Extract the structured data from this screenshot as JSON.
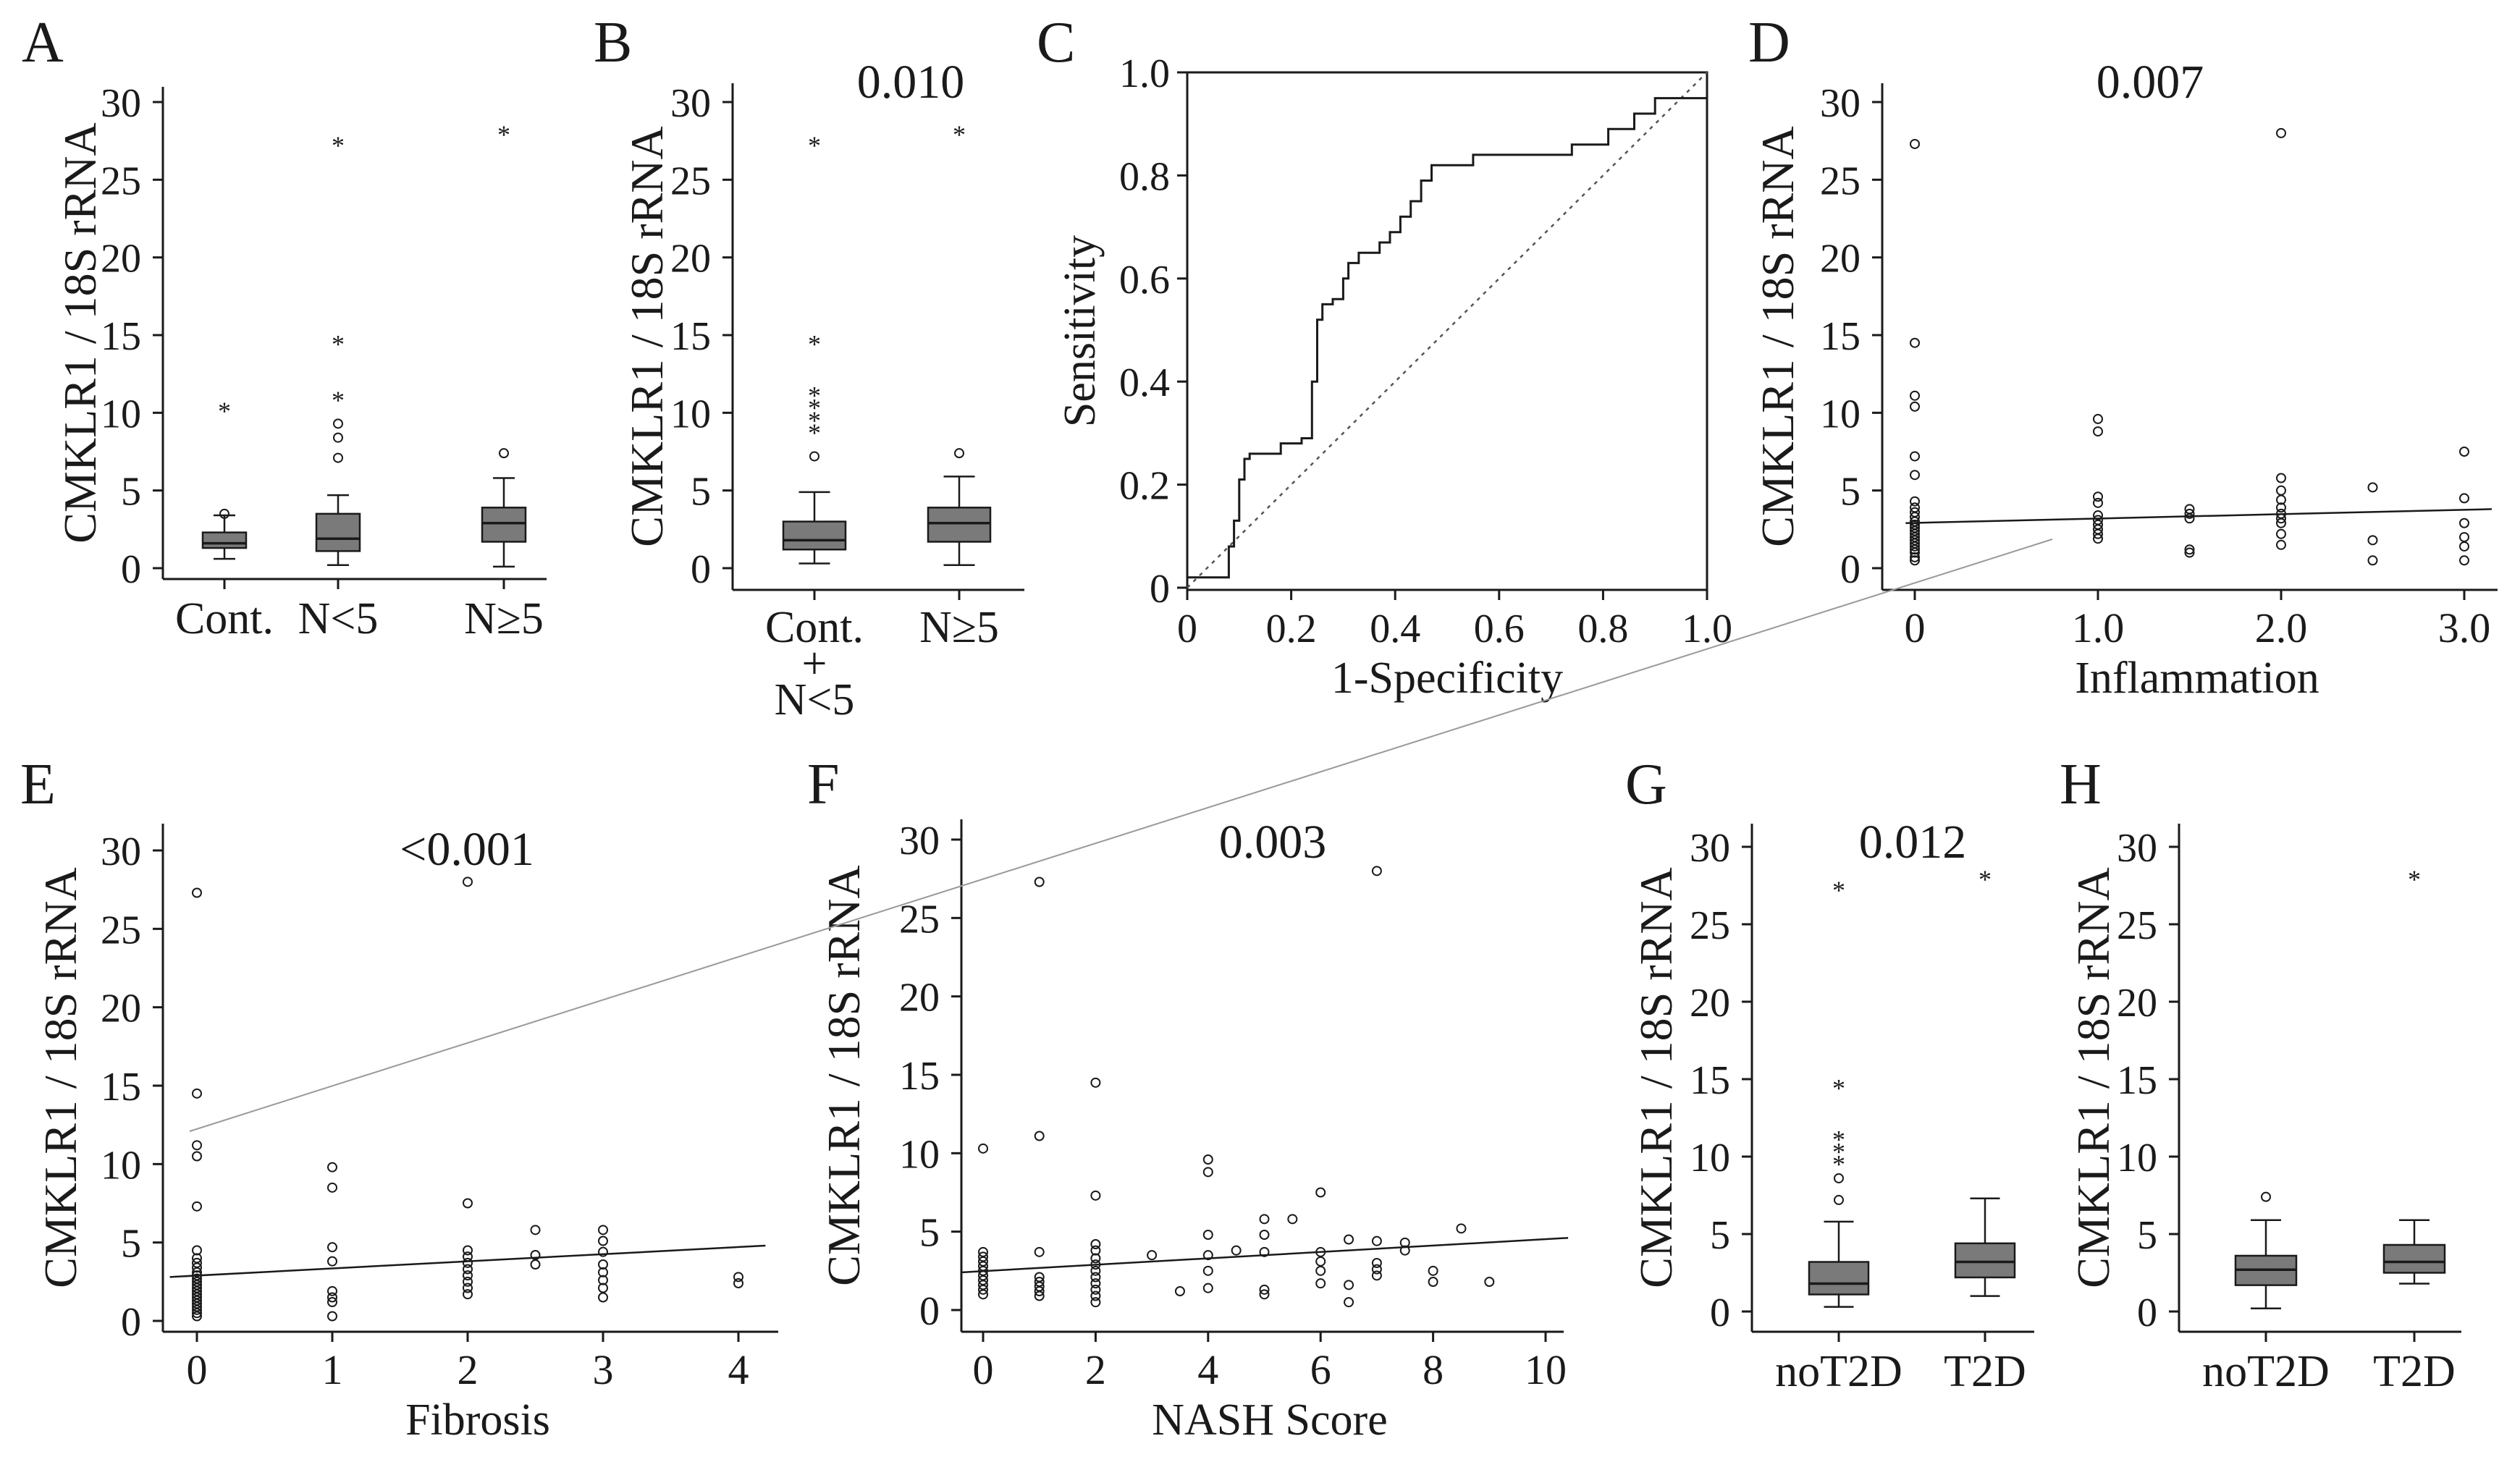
{
  "figure": {
    "ylabel": "CMKLR1 / 18S rRNA",
    "colors": {
      "ink": "#1a1a1a",
      "box_fill": "#7a7a7a",
      "diag": "#555555",
      "cross_line": "#9a9a9a"
    }
  },
  "chart_data": [
    {
      "id": "A",
      "letter": "A",
      "type": "box",
      "ylabel": "CMKLR1 / 18S rRNA",
      "xlabel": "",
      "pvalue": "",
      "ylim": [
        0,
        30
      ],
      "yticks": [
        "0",
        "5",
        "10",
        "15",
        "20",
        "25",
        "30"
      ],
      "categories": [
        "Cont.",
        "N<5",
        "N≥5"
      ],
      "boxes": [
        {
          "name": "Cont.",
          "whisker_low": 0.6,
          "q1": 1.3,
          "median": 1.6,
          "q3": 2.3,
          "whisker_high": 3.4,
          "outliers": [
            3.5
          ],
          "extremes": [
            10.2
          ]
        },
        {
          "name": "N<5",
          "whisker_low": 0.2,
          "q1": 1.1,
          "median": 1.9,
          "q3": 3.5,
          "whisker_high": 4.7,
          "outliers": [
            7.1,
            8.4,
            9.3
          ],
          "extremes": [
            10.9,
            14.5,
            27.3
          ]
        },
        {
          "name": "N≥5",
          "whisker_low": 0.1,
          "q1": 1.7,
          "median": 2.9,
          "q3": 3.9,
          "whisker_high": 5.8,
          "outliers": [
            7.4
          ],
          "extremes": [
            28.0
          ]
        }
      ]
    },
    {
      "id": "B",
      "letter": "B",
      "type": "box",
      "ylabel": "CMKLR1 / 18S rRNA",
      "xlabel": "",
      "pvalue": "0.010",
      "ylim": [
        0,
        30
      ],
      "yticks": [
        "0",
        "5",
        "10",
        "15",
        "20",
        "25",
        "30"
      ],
      "categories": [
        "Cont.\n+\nN<5",
        "N≥5"
      ],
      "category_lines": [
        [
          "Cont.",
          "+",
          "N<5"
        ],
        [
          "N≥5"
        ]
      ],
      "boxes": [
        {
          "name": "Cont. + N<5",
          "whisker_low": 0.3,
          "q1": 1.2,
          "median": 1.8,
          "q3": 3.0,
          "whisker_high": 4.9,
          "outliers": [
            7.2
          ],
          "extremes": [
            8.8,
            9.6,
            10.4,
            11.2,
            14.5,
            27.3
          ]
        },
        {
          "name": "N≥5",
          "whisker_low": 0.2,
          "q1": 1.7,
          "median": 2.9,
          "q3": 3.9,
          "whisker_high": 5.9,
          "outliers": [
            7.4
          ],
          "extremes": [
            28.0
          ]
        }
      ]
    },
    {
      "id": "C",
      "letter": "C",
      "type": "line",
      "xlabel": "1-Specificity",
      "ylabel": "Sensitivity",
      "xlim": [
        0,
        1
      ],
      "ylim": [
        0,
        1
      ],
      "xticks": [
        "0",
        "0.2",
        "0.4",
        "0.6",
        "0.8",
        "1.0"
      ],
      "yticks": [
        "0",
        "0.2",
        "0.4",
        "0.6",
        "0.8",
        "1.0"
      ],
      "series": [
        {
          "name": "ROC",
          "points": [
            [
              0,
              0.02
            ],
            [
              0.08,
              0.02
            ],
            [
              0.08,
              0.08
            ],
            [
              0.09,
              0.08
            ],
            [
              0.09,
              0.13
            ],
            [
              0.1,
              0.13
            ],
            [
              0.1,
              0.21
            ],
            [
              0.11,
              0.21
            ],
            [
              0.11,
              0.25
            ],
            [
              0.12,
              0.25
            ],
            [
              0.12,
              0.26
            ],
            [
              0.18,
              0.26
            ],
            [
              0.18,
              0.28
            ],
            [
              0.22,
              0.28
            ],
            [
              0.22,
              0.29
            ],
            [
              0.24,
              0.29
            ],
            [
              0.24,
              0.4
            ],
            [
              0.25,
              0.4
            ],
            [
              0.25,
              0.52
            ],
            [
              0.26,
              0.52
            ],
            [
              0.26,
              0.55
            ],
            [
              0.28,
              0.55
            ],
            [
              0.28,
              0.56
            ],
            [
              0.3,
              0.56
            ],
            [
              0.3,
              0.6
            ],
            [
              0.31,
              0.6
            ],
            [
              0.31,
              0.63
            ],
            [
              0.33,
              0.63
            ],
            [
              0.33,
              0.65
            ],
            [
              0.37,
              0.65
            ],
            [
              0.37,
              0.67
            ],
            [
              0.39,
              0.67
            ],
            [
              0.39,
              0.69
            ],
            [
              0.41,
              0.69
            ],
            [
              0.41,
              0.72
            ],
            [
              0.43,
              0.72
            ],
            [
              0.43,
              0.75
            ],
            [
              0.45,
              0.75
            ],
            [
              0.45,
              0.79
            ],
            [
              0.47,
              0.79
            ],
            [
              0.47,
              0.82
            ],
            [
              0.55,
              0.82
            ],
            [
              0.55,
              0.84
            ],
            [
              0.74,
              0.84
            ],
            [
              0.74,
              0.86
            ],
            [
              0.81,
              0.86
            ],
            [
              0.81,
              0.89
            ],
            [
              0.86,
              0.89
            ],
            [
              0.86,
              0.92
            ],
            [
              0.9,
              0.92
            ],
            [
              0.9,
              0.95
            ],
            [
              1.0,
              0.95
            ]
          ]
        },
        {
          "name": "Reference",
          "points": [
            [
              0,
              0
            ],
            [
              1,
              1
            ]
          ]
        }
      ]
    },
    {
      "id": "D",
      "letter": "D",
      "type": "scatter",
      "ylabel": "CMKLR1 / 18S rRNA",
      "xlabel": "Inflammation",
      "pvalue": "0.007",
      "xlim": [
        -0.2,
        3.2
      ],
      "ylim": [
        0,
        30
      ],
      "xtick_values": [
        0,
        1,
        2,
        3
      ],
      "xticks": [
        "0",
        "1.0",
        "2.0",
        "3.0"
      ],
      "yticks": [
        "0",
        "5",
        "10",
        "15",
        "20",
        "25",
        "30"
      ],
      "points": [
        [
          0,
          27.3
        ],
        [
          0,
          14.5
        ],
        [
          0,
          11.1
        ],
        [
          0,
          10.4
        ],
        [
          0,
          7.2
        ],
        [
          0,
          6
        ],
        [
          0,
          4.3
        ],
        [
          0,
          3.9
        ],
        [
          0,
          3.6
        ],
        [
          0,
          3.3
        ],
        [
          0,
          3
        ],
        [
          0,
          2.8
        ],
        [
          0,
          2.6
        ],
        [
          0,
          2.4
        ],
        [
          0,
          2.2
        ],
        [
          0,
          2
        ],
        [
          0,
          1.8
        ],
        [
          0,
          1.6
        ],
        [
          0,
          1.4
        ],
        [
          0,
          1.2
        ],
        [
          0,
          1
        ],
        [
          0,
          0.7
        ],
        [
          0,
          0.5
        ],
        [
          1,
          9.6
        ],
        [
          1,
          8.8
        ],
        [
          1,
          4.6
        ],
        [
          1,
          4.2
        ],
        [
          1,
          3.4
        ],
        [
          1,
          3.1
        ],
        [
          1,
          2.8
        ],
        [
          1,
          2.5
        ],
        [
          1,
          2.2
        ],
        [
          1,
          1.9
        ],
        [
          1.5,
          3.8
        ],
        [
          1.5,
          3.5
        ],
        [
          1.5,
          3.2
        ],
        [
          1.5,
          1.2
        ],
        [
          1.5,
          1.0
        ],
        [
          2,
          28.0
        ],
        [
          2,
          5.8
        ],
        [
          2,
          5.0
        ],
        [
          2,
          4.4
        ],
        [
          2,
          3.9
        ],
        [
          2,
          3.5
        ],
        [
          2,
          3.2
        ],
        [
          2,
          2.9
        ],
        [
          2,
          2.2
        ],
        [
          2,
          1.5
        ],
        [
          2.5,
          5.2
        ],
        [
          2.5,
          1.8
        ],
        [
          2.5,
          0.5
        ],
        [
          3,
          7.5
        ],
        [
          3,
          4.5
        ],
        [
          3,
          2.9
        ],
        [
          3,
          2.0
        ],
        [
          3,
          1.4
        ],
        [
          3,
          0.5
        ]
      ],
      "fit": [
        [
          -0.05,
          2.9
        ],
        [
          3.15,
          3.8
        ]
      ]
    },
    {
      "id": "E",
      "letter": "E",
      "type": "scatter",
      "ylabel": "CMKLR1 / 18S rRNA",
      "xlabel": "Fibrosis",
      "pvalue": "<0.001",
      "xlim": [
        -0.2,
        4.2
      ],
      "ylim": [
        0,
        30
      ],
      "xtick_values": [
        0,
        1,
        2,
        3,
        4
      ],
      "xticks": [
        "0",
        "1",
        "2",
        "3",
        "4"
      ],
      "yticks": [
        "0",
        "5",
        "10",
        "15",
        "20",
        "25",
        "30"
      ],
      "points": [
        [
          0,
          27.3
        ],
        [
          0,
          14.5
        ],
        [
          0,
          11.2
        ],
        [
          0,
          10.5
        ],
        [
          0,
          7.3
        ],
        [
          0,
          4.5
        ],
        [
          0,
          4.0
        ],
        [
          0,
          3.7
        ],
        [
          0,
          3.4
        ],
        [
          0,
          3.1
        ],
        [
          0,
          2.9
        ],
        [
          0,
          2.7
        ],
        [
          0,
          2.5
        ],
        [
          0,
          2.3
        ],
        [
          0,
          2.1
        ],
        [
          0,
          1.9
        ],
        [
          0,
          1.7
        ],
        [
          0,
          1.5
        ],
        [
          0,
          1.3
        ],
        [
          0,
          1.1
        ],
        [
          0,
          0.9
        ],
        [
          0,
          0.7
        ],
        [
          0,
          0.5
        ],
        [
          0,
          0.3
        ],
        [
          1,
          9.8
        ],
        [
          1,
          8.5
        ],
        [
          1,
          4.7
        ],
        [
          1,
          3.8
        ],
        [
          1,
          1.9
        ],
        [
          1,
          1.5
        ],
        [
          1,
          1.2
        ],
        [
          1,
          0.3
        ],
        [
          2,
          28.0
        ],
        [
          2,
          7.5
        ],
        [
          2,
          4.5
        ],
        [
          2,
          4.1
        ],
        [
          2,
          3.7
        ],
        [
          2,
          3.3
        ],
        [
          2,
          2.9
        ],
        [
          2,
          2.5
        ],
        [
          2,
          2.1
        ],
        [
          2,
          1.7
        ],
        [
          2.5,
          5.8
        ],
        [
          2.5,
          4.2
        ],
        [
          2.5,
          3.6
        ],
        [
          3,
          5.8
        ],
        [
          3,
          5.1
        ],
        [
          3,
          4.4
        ],
        [
          3,
          3.6
        ],
        [
          3,
          3.1
        ],
        [
          3,
          2.6
        ],
        [
          3,
          2.1
        ],
        [
          3,
          1.5
        ],
        [
          4,
          2.8
        ],
        [
          4,
          2.4
        ]
      ],
      "fit": [
        [
          -0.2,
          2.8
        ],
        [
          4.2,
          4.8
        ]
      ]
    },
    {
      "id": "F",
      "letter": "F",
      "type": "scatter",
      "ylabel": "CMKLR1 / 18S rRNA",
      "xlabel": "NASH Score",
      "pvalue": "0.003",
      "xlim": [
        -0.4,
        10.4
      ],
      "ylim": [
        0,
        30
      ],
      "xtick_values": [
        0,
        2,
        4,
        6,
        8,
        10
      ],
      "xticks": [
        "0",
        "2",
        "4",
        "6",
        "8",
        "10"
      ],
      "yticks": [
        "0",
        "5",
        "10",
        "15",
        "20",
        "25",
        "30"
      ],
      "points": [
        [
          0,
          10.3
        ],
        [
          0,
          3.7
        ],
        [
          0,
          3.4
        ],
        [
          0,
          3.1
        ],
        [
          0,
          2.8
        ],
        [
          0,
          2.5
        ],
        [
          0,
          2.2
        ],
        [
          0,
          1.9
        ],
        [
          0,
          1.6
        ],
        [
          0,
          1.3
        ],
        [
          0,
          1.0
        ],
        [
          1,
          27.3
        ],
        [
          1,
          11.1
        ],
        [
          1,
          3.7
        ],
        [
          1,
          2.1
        ],
        [
          1,
          1.8
        ],
        [
          1,
          1.5
        ],
        [
          1,
          1.2
        ],
        [
          1,
          0.9
        ],
        [
          2,
          14.5
        ],
        [
          2,
          7.3
        ],
        [
          2,
          4.2
        ],
        [
          2,
          3.8
        ],
        [
          2,
          3.3
        ],
        [
          2,
          2.9
        ],
        [
          2,
          2.5
        ],
        [
          2,
          2.1
        ],
        [
          2,
          1.7
        ],
        [
          2,
          1.3
        ],
        [
          2,
          0.9
        ],
        [
          2,
          0.5
        ],
        [
          3,
          3.5
        ],
        [
          3.5,
          1.2
        ],
        [
          4,
          9.6
        ],
        [
          4,
          8.8
        ],
        [
          4,
          4.8
        ],
        [
          4,
          3.5
        ],
        [
          4,
          2.5
        ],
        [
          4,
          1.4
        ],
        [
          4.5,
          3.8
        ],
        [
          5,
          5.8
        ],
        [
          5,
          4.8
        ],
        [
          5,
          3.7
        ],
        [
          5,
          1.3
        ],
        [
          5,
          1.0
        ],
        [
          5.5,
          5.8
        ],
        [
          6,
          7.5
        ],
        [
          6,
          3.7
        ],
        [
          6,
          3.1
        ],
        [
          6,
          2.5
        ],
        [
          6,
          1.7
        ],
        [
          6.5,
          4.5
        ],
        [
          6.5,
          1.6
        ],
        [
          6.5,
          0.5
        ],
        [
          7,
          28.0
        ],
        [
          7,
          4.4
        ],
        [
          7,
          3.0
        ],
        [
          7,
          2.6
        ],
        [
          7,
          2.2
        ],
        [
          7.5,
          4.3
        ],
        [
          7.5,
          3.8
        ],
        [
          8,
          2.5
        ],
        [
          8,
          1.8
        ],
        [
          8.5,
          5.2
        ],
        [
          9,
          1.8
        ]
      ],
      "fit": [
        [
          -0.4,
          2.4
        ],
        [
          10.4,
          4.6
        ]
      ]
    },
    {
      "id": "G",
      "letter": "G",
      "type": "box",
      "ylabel": "CMKLR1 / 18S rRNA",
      "xlabel": "",
      "pvalue": "0.012",
      "ylim": [
        0,
        30
      ],
      "yticks": [
        "0",
        "5",
        "10",
        "15",
        "20",
        "25",
        "30"
      ],
      "categories": [
        "noT2D",
        "T2D"
      ],
      "boxes": [
        {
          "name": "noT2D",
          "whisker_low": 0.3,
          "q1": 1.1,
          "median": 1.8,
          "q3": 3.2,
          "whisker_high": 5.8,
          "outliers": [
            7.2,
            8.6
          ],
          "extremes": [
            9.6,
            10.4,
            11.2,
            14.5,
            27.3
          ]
        },
        {
          "name": "T2D",
          "whisker_low": 1.0,
          "q1": 2.2,
          "median": 3.2,
          "q3": 4.4,
          "whisker_high": 7.3,
          "outliers": [],
          "extremes": [
            28.0
          ]
        }
      ]
    },
    {
      "id": "H",
      "letter": "H",
      "type": "box",
      "ylabel": "CMKLR1 / 18S rRNA",
      "xlabel": "",
      "pvalue": "",
      "ylim": [
        0,
        30
      ],
      "yticks": [
        "0",
        "5",
        "10",
        "15",
        "20",
        "25",
        "30"
      ],
      "categories": [
        "noT2D",
        "T2D"
      ],
      "boxes": [
        {
          "name": "noT2D",
          "whisker_low": 0.2,
          "q1": 1.7,
          "median": 2.7,
          "q3": 3.6,
          "whisker_high": 5.9,
          "outliers": [
            7.4
          ],
          "extremes": []
        },
        {
          "name": "T2D",
          "whisker_low": 1.8,
          "q1": 2.5,
          "median": 3.2,
          "q3": 4.3,
          "whisker_high": 5.9,
          "outliers": [],
          "extremes": [
            28.0
          ]
        }
      ]
    }
  ]
}
